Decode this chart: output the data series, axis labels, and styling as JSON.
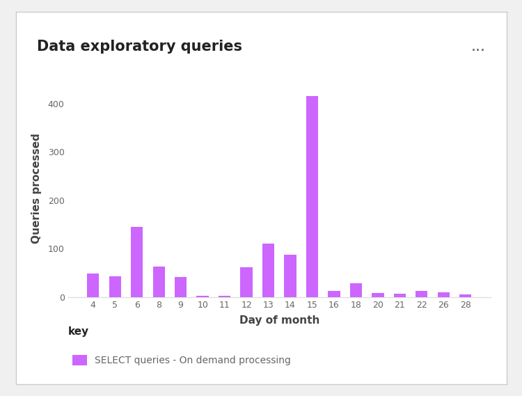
{
  "title": "Data exploratory queries",
  "dots": "...",
  "xlabel": "Day of month",
  "ylabel": "Queries processed",
  "legend_title": "key",
  "legend_label": "SELECT queries - On demand processing",
  "bar_color": "#cc66ff",
  "background_color": "#f0f0f0",
  "card_color": "#ffffff",
  "days": [
    4,
    5,
    6,
    8,
    9,
    10,
    11,
    12,
    13,
    14,
    15,
    16,
    18,
    20,
    21,
    22,
    26,
    28
  ],
  "values": [
    48,
    43,
    145,
    63,
    42,
    2,
    2,
    62,
    110,
    88,
    415,
    12,
    28,
    8,
    7,
    12,
    10,
    5
  ],
  "ylim": [
    0,
    450
  ],
  "yticks": [
    0,
    100,
    200,
    300,
    400
  ],
  "title_fontsize": 15,
  "axis_label_fontsize": 11,
  "tick_fontsize": 9,
  "legend_title_fontsize": 11,
  "legend_label_fontsize": 10,
  "dots_fontsize": 16,
  "title_color": "#222222",
  "axis_label_color": "#444444",
  "tick_color": "#666666",
  "dots_color": "#555555",
  "spine_color": "#dddddd"
}
